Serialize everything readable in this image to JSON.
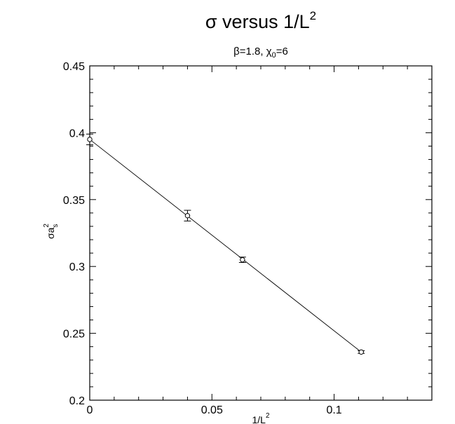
{
  "chart_data": {
    "type": "scatter",
    "title_main": "σ versus 1/L",
    "title_sup": "2",
    "subtitle_pre": "β=1.8, χ",
    "subtitle_sub": "0",
    "subtitle_post": "=6",
    "xlabel_main": "1/L",
    "xlabel_sup": "2",
    "ylabel_main": "σa",
    "ylabel_sub": "s",
    "ylabel_sup": "2",
    "xlim": [
      0,
      0.14
    ],
    "ylim": [
      0.2,
      0.45
    ],
    "xticks": [
      0,
      0.05,
      0.1
    ],
    "yticks": [
      0.2,
      0.25,
      0.3,
      0.35,
      0.4,
      0.45
    ],
    "xtick_labels": [
      "0",
      "0.05",
      "0.1"
    ],
    "ytick_labels": [
      "0.2",
      "0.25",
      "0.3",
      "0.35",
      "0.4",
      "0.45"
    ],
    "grid": false,
    "series": [
      {
        "points": [
          {
            "x": 0.0,
            "y": 0.395,
            "yerr": 0.004
          },
          {
            "x": 0.04,
            "y": 0.338,
            "yerr": 0.004
          },
          {
            "x": 0.0625,
            "y": 0.305,
            "yerr": 0.002
          },
          {
            "x": 0.1111,
            "y": 0.236,
            "yerr": 0.001
          }
        ]
      }
    ],
    "fit_line": {
      "x": [
        0.0,
        0.1111
      ],
      "y": [
        0.395,
        0.236
      ]
    }
  }
}
